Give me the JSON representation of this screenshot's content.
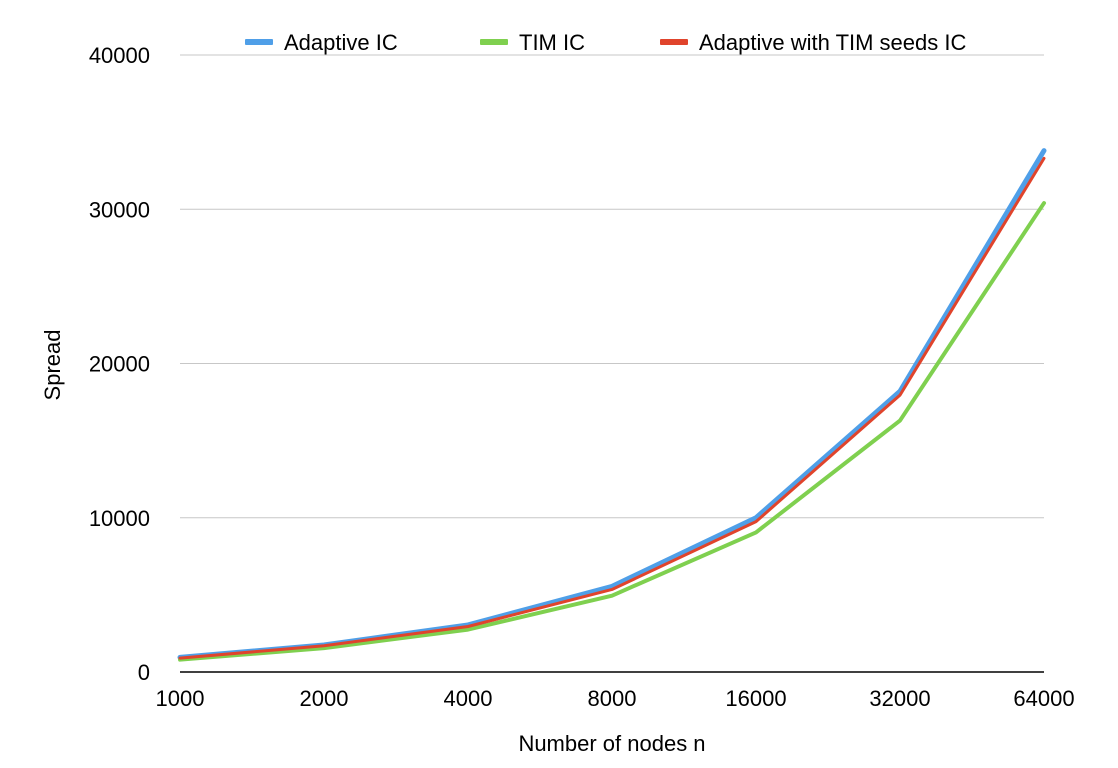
{
  "chart_data": {
    "type": "line",
    "xlabel": "Number of nodes n",
    "ylabel": "Spread",
    "categories": [
      "1000",
      "2000",
      "4000",
      "8000",
      "16000",
      "32000",
      "64000"
    ],
    "ylim": [
      0,
      40000
    ],
    "yticks": [
      "0",
      "10000",
      "20000",
      "30000",
      "40000"
    ],
    "grid": true,
    "legend_position": "top",
    "series": [
      {
        "name": "Adaptive IC",
        "color": "#4f9fe8",
        "values": [
          950,
          1750,
          3050,
          5550,
          10000,
          18200,
          33800
        ]
      },
      {
        "name": "TIM IC",
        "color": "#7fd04f",
        "values": [
          800,
          1550,
          2750,
          4950,
          9050,
          16300,
          30400
        ]
      },
      {
        "name": "Adaptive with TIM seeds IC",
        "color": "#e0442c",
        "values": [
          900,
          1700,
          2950,
          5350,
          9750,
          17950,
          33300
        ]
      }
    ]
  }
}
